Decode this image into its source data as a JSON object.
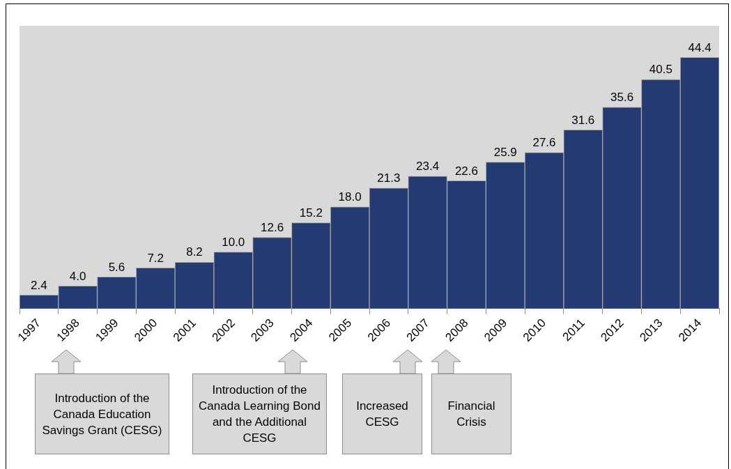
{
  "chart_data": {
    "type": "bar",
    "categories": [
      "1997",
      "1998",
      "1999",
      "2000",
      "2001",
      "2002",
      "2003",
      "2004",
      "2005",
      "2006",
      "2007",
      "2008",
      "2009",
      "2010",
      "2011",
      "2012",
      "2013",
      "2014"
    ],
    "values": [
      2.4,
      4.0,
      5.6,
      7.2,
      8.2,
      10.0,
      12.6,
      15.2,
      18.0,
      21.3,
      23.4,
      22.6,
      25.9,
      27.6,
      31.6,
      35.6,
      40.5,
      44.4
    ],
    "value_labels": [
      "2.4",
      "4.0",
      "5.6",
      "7.2",
      "8.2",
      "10.0",
      "12.6",
      "15.2",
      "18.0",
      "21.3",
      "23.4",
      "22.6",
      "25.9",
      "27.6",
      "31.6",
      "35.6",
      "40.5",
      "44.4"
    ],
    "color": "#243a73",
    "annotations": [
      "Introduction of the Canada Education Savings Grant (CESG)",
      "Introduction of the Canada Learning Bond and the Additional CESG",
      "Increased CESG",
      "Financial Crisis"
    ]
  }
}
